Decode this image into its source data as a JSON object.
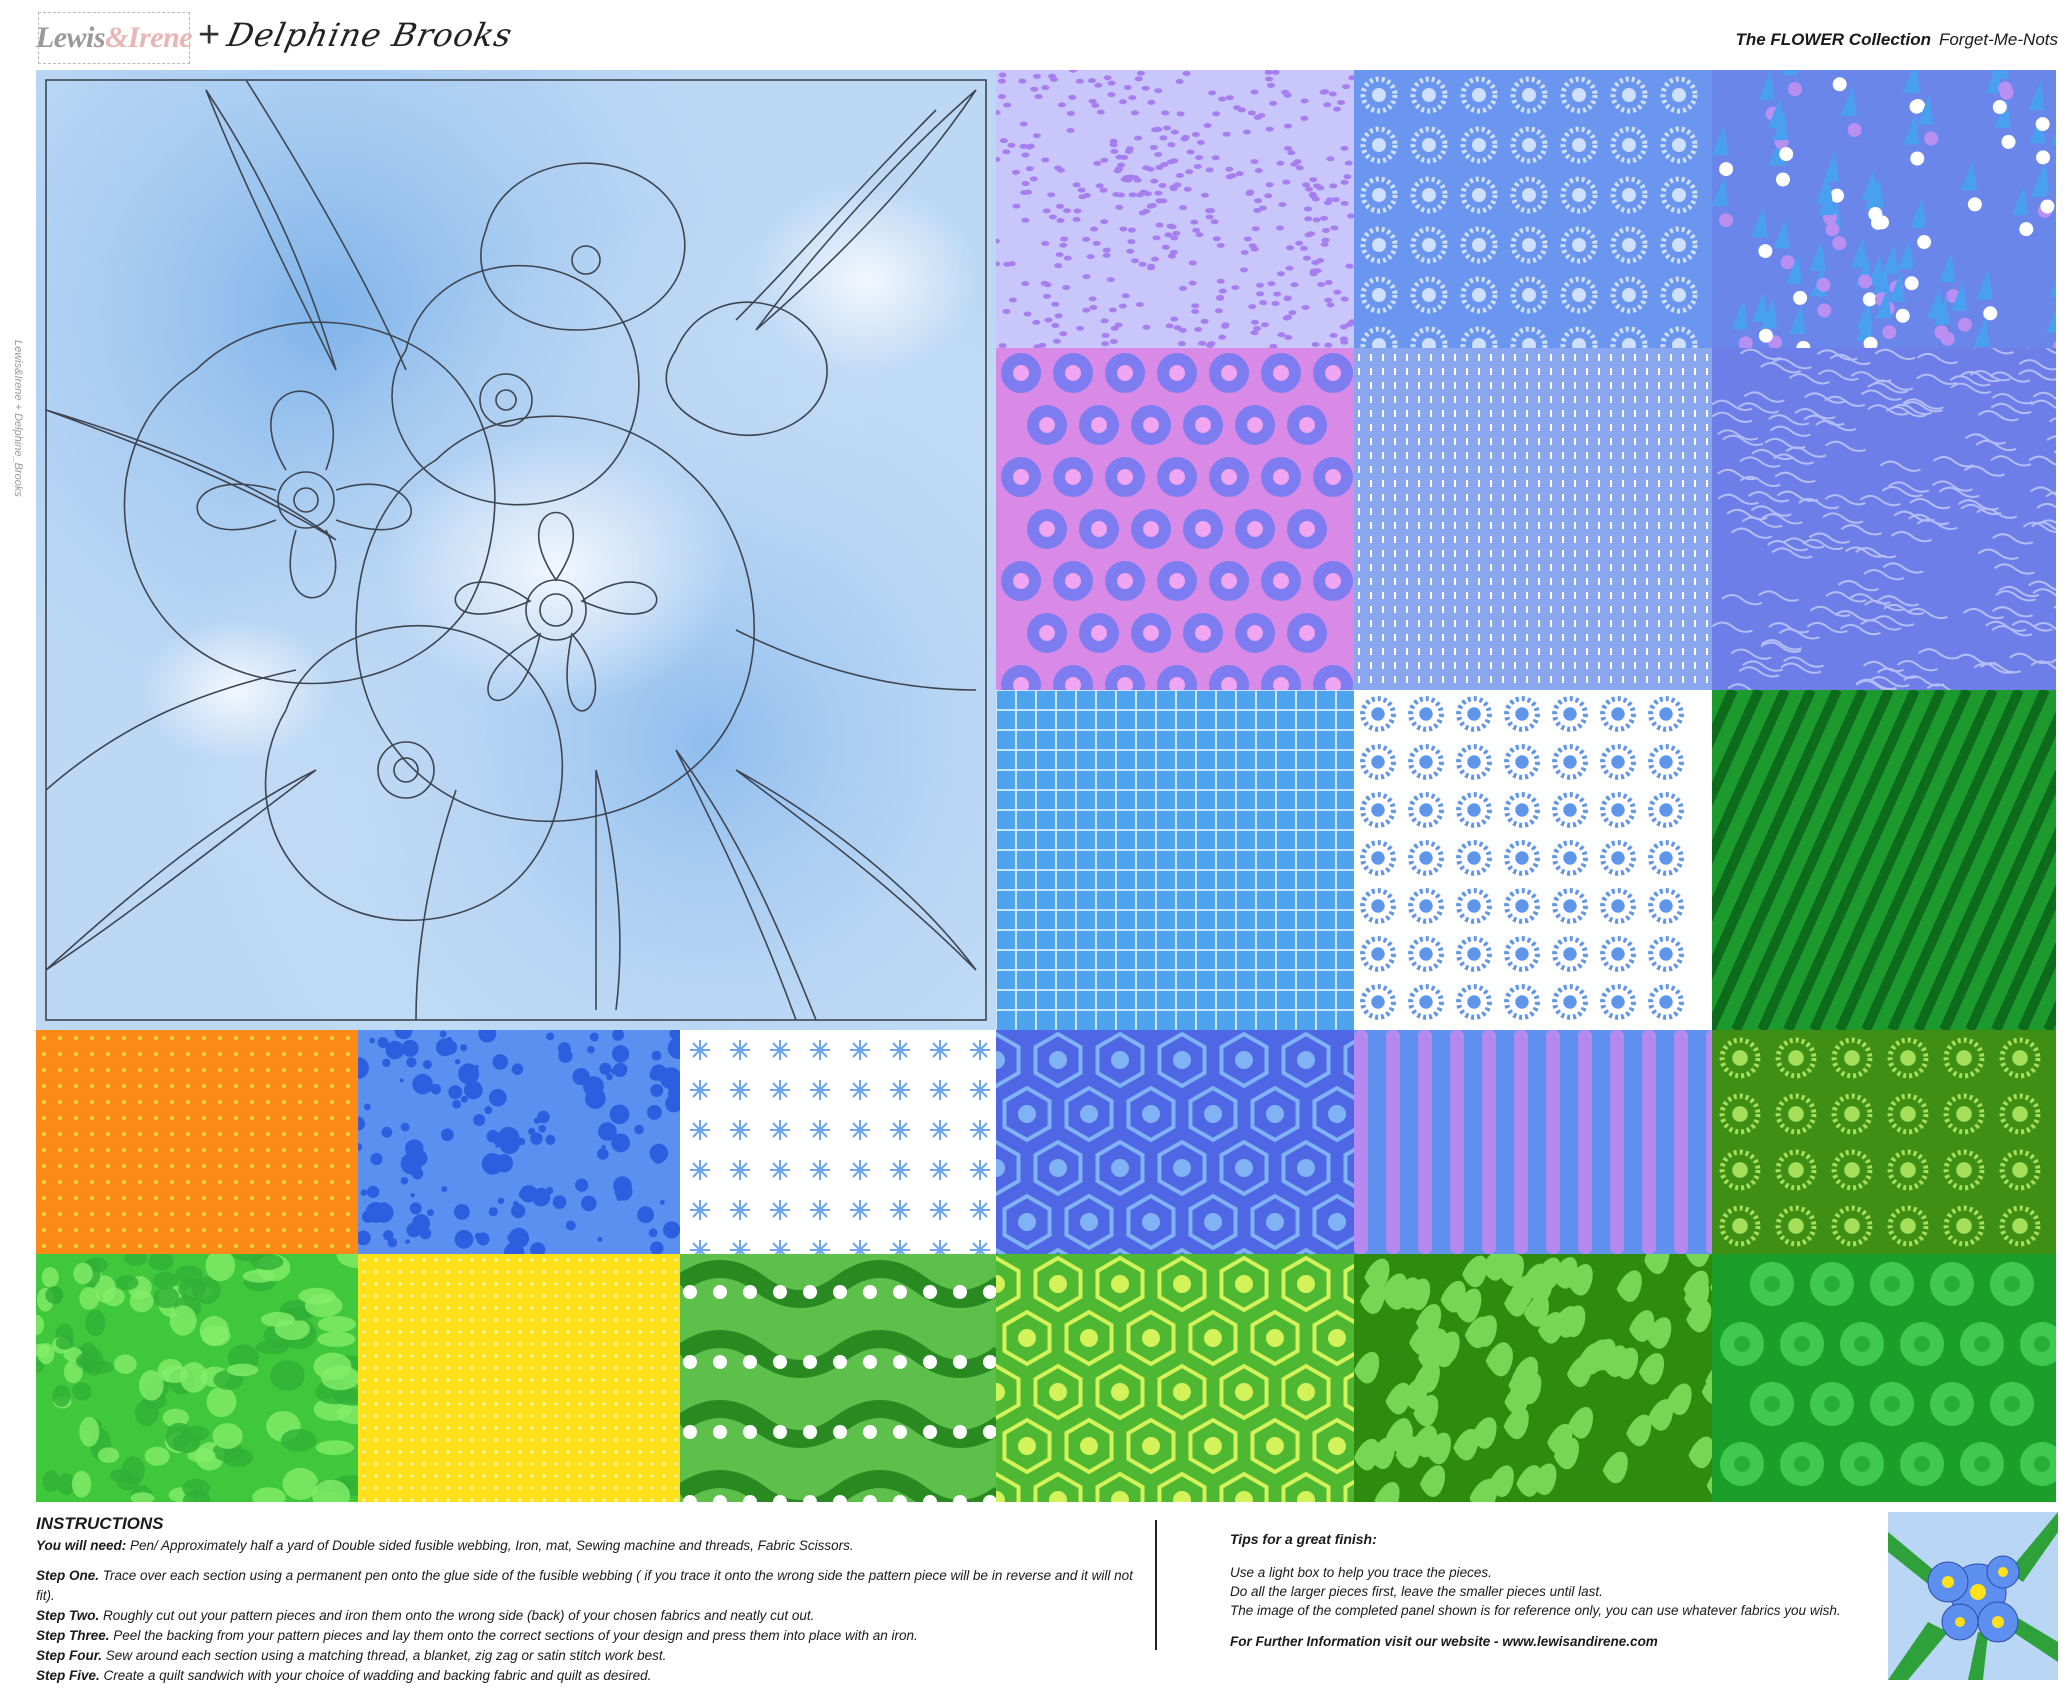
{
  "header": {
    "brand_left": "Lewis",
    "brand_amp": "&",
    "brand_right": "Irene",
    "plus": "+",
    "designer": "Delphine Brooks",
    "collection": "The FLOWER Collection",
    "design_name": "Forget-Me-Nots"
  },
  "side_mark": "Lewis&Irene + Delphine_Brooks",
  "instructions": {
    "title": "INSTRUCTIONS",
    "need_label": "You will need:",
    "need_text": "Pen/ Approximately half a yard of Double sided fusible webbing, Iron, mat, Sewing machine and threads, Fabric Scissors.",
    "steps": [
      {
        "label": "Step One.",
        "text": "Trace over each section using a permanent pen onto the glue side of the fusible webbing ( if you trace it onto the wrong side the pattern piece will be in reverse and it will not fit)."
      },
      {
        "label": "Step Two.",
        "text": "Roughly cut out your pattern pieces and iron them onto the wrong side (back) of your chosen fabrics and neatly cut out."
      },
      {
        "label": "Step Three.",
        "text": "Peel the backing from your pattern pieces and lay them onto the correct sections of your design and press them into place with an iron."
      },
      {
        "label": "Step Four.",
        "text": "Sew around each section using a matching thread, a blanket, zig zag or satin stitch work best."
      },
      {
        "label": "Step Five.",
        "text": "Create a quilt sandwich with your choice of wadding and backing fabric and quilt as desired."
      }
    ]
  },
  "tips": {
    "title": "Tips for a great finish:",
    "lines": [
      "Use a light box to help you trace the pieces.",
      "Do all the larger pieces first, leave the smaller pieces until last.",
      "The image of the completed panel shown is for reference only, you can use whatever fabrics you wish."
    ],
    "website": "For Further Information visit our website - www.lewisandirene.com"
  },
  "swatches": [
    {
      "name": "lilac-speckle",
      "bg": "#c9c6fb",
      "fg": "#a77ef0"
    },
    {
      "name": "blue-daisy",
      "bg": "#6b96ef",
      "fg": "#cfe0ff"
    },
    {
      "name": "blue-floral",
      "bg": "#6a86ea",
      "fg": "#ffffff"
    },
    {
      "name": "pink-medallion",
      "bg": "#d989e6",
      "fg": "#7d7cf0"
    },
    {
      "name": "blue-dash",
      "bg": "#8aa6ef",
      "fg": "#ffffff"
    },
    {
      "name": "periwinkle-crackle",
      "bg": "#6d7ee8",
      "fg": "#b4bdf7"
    },
    {
      "name": "blue-grid",
      "bg": "#4ea3ef",
      "fg": "#cde6ff"
    },
    {
      "name": "white-dot",
      "bg": "#ffffff",
      "fg": "#5f95ea"
    },
    {
      "name": "green-stripe",
      "bg": "#1c9a2e",
      "fg": "#0d6c1b"
    },
    {
      "name": "orange-star",
      "bg": "#fb8b16",
      "fg": "#ffd23a"
    },
    {
      "name": "blue-splatter",
      "bg": "#5b8ff0",
      "fg": "#2b5fe0"
    },
    {
      "name": "white-snowflake",
      "bg": "#ffffff",
      "fg": "#6ea4ee"
    },
    {
      "name": "blue-hexagon",
      "bg": "#4f67e4",
      "fg": "#7fb3f5"
    },
    {
      "name": "purple-ogee",
      "bg": "#5f92ee",
      "fg": "#b48af2"
    },
    {
      "name": "green-sunburst",
      "bg": "#3f8f16",
      "fg": "#a6e05a"
    },
    {
      "name": "green-camo",
      "bg": "#40c83c",
      "fg": "#83ee6a"
    },
    {
      "name": "yellow-dot",
      "bg": "#ffe11b",
      "fg": "#fff7b0"
    },
    {
      "name": "green-wave-floral",
      "bg": "#5cc04a",
      "fg": "#ffffff"
    },
    {
      "name": "green-hexagon",
      "bg": "#4fb833",
      "fg": "#d4f35a"
    },
    {
      "name": "green-foliage",
      "bg": "#2f8a10",
      "fg": "#78d655"
    },
    {
      "name": "green-flower",
      "bg": "#1b9f2a",
      "fg": "#3fca4f"
    }
  ],
  "colors": {
    "watercolor_blue": "#a9cdf3",
    "outline": "#404550"
  }
}
